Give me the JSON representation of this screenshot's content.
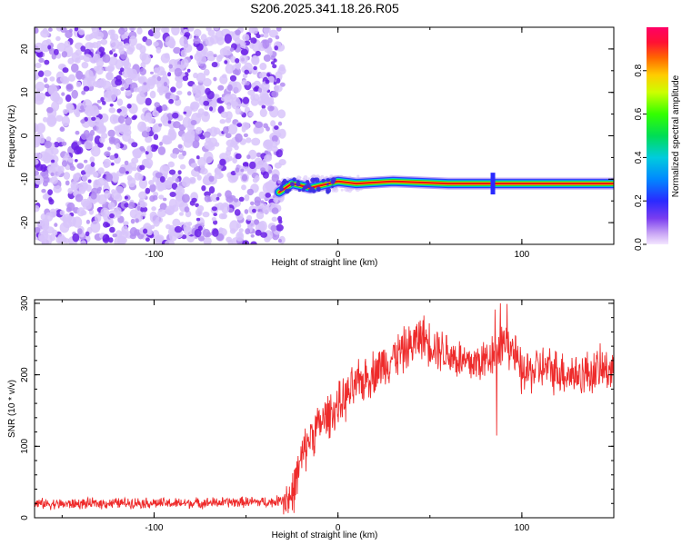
{
  "title": "S206.2025.341.18.26.R05",
  "colors": {
    "noise_dark": "#6a1ee6",
    "noise_light": "#d8c4fa",
    "snr_line": "#ee2b2b",
    "frame": "#000000"
  },
  "chart_data": [
    {
      "type": "heatmap",
      "xlabel": "Height of straight line (km)",
      "ylabel": "Frequency (Hz)",
      "xlim": [
        -165,
        150
      ],
      "ylim": [
        -25,
        25
      ],
      "xticks": [
        "-100",
        "0",
        "100"
      ],
      "yticks": [
        "-20",
        "-10",
        "0",
        "10",
        "20"
      ],
      "colorbar": {
        "label": "Normalized spectral amplitude",
        "range": [
          0.0,
          1.0
        ],
        "ticks": [
          "0.0",
          "0.2",
          "0.4",
          "0.6",
          "0.8"
        ],
        "colormap": "rainbow"
      },
      "regions": [
        {
          "name": "noise",
          "x_range": [
            -165,
            -32
          ],
          "y_range": [
            -25,
            25
          ],
          "amplitude": "low, scattered"
        },
        {
          "name": "signal",
          "x_range": [
            -32,
            150
          ],
          "frequency_hz": -11,
          "amplitude": "high, narrow band"
        }
      ],
      "signal_track": [
        {
          "x": -32,
          "y": -13
        },
        {
          "x": -25,
          "y": -11
        },
        {
          "x": -15,
          "y": -12
        },
        {
          "x": -5,
          "y": -11
        },
        {
          "x": 0,
          "y": -10.5
        },
        {
          "x": 10,
          "y": -11
        },
        {
          "x": 30,
          "y": -10.5
        },
        {
          "x": 60,
          "y": -11
        },
        {
          "x": 85,
          "y": -11
        },
        {
          "x": 150,
          "y": -11
        }
      ]
    },
    {
      "type": "line",
      "xlabel": "Height of straight line (km)",
      "ylabel": "SNR (10 * v/v)",
      "xlim": [
        -165,
        150
      ],
      "ylim": [
        0,
        305
      ],
      "xticks": [
        "-100",
        "0",
        "100"
      ],
      "yticks": [
        "0",
        "100",
        "200",
        "300"
      ],
      "series": [
        {
          "x": [
            -165,
            -150,
            -130,
            -110,
            -90,
            -70,
            -50,
            -35,
            -25,
            -20,
            -15,
            -10,
            -5,
            0,
            5,
            10,
            20,
            30,
            40,
            45,
            50,
            60,
            70,
            80,
            85,
            90,
            95,
            100,
            110,
            120,
            130,
            140,
            150
          ],
          "y": [
            20,
            19,
            20,
            21,
            20,
            21,
            22,
            22,
            30,
            80,
            115,
            130,
            145,
            155,
            170,
            185,
            205,
            225,
            240,
            255,
            245,
            230,
            215,
            220,
            235,
            250,
            235,
            200,
            210,
            205,
            200,
            205,
            210
          ]
        }
      ]
    }
  ]
}
